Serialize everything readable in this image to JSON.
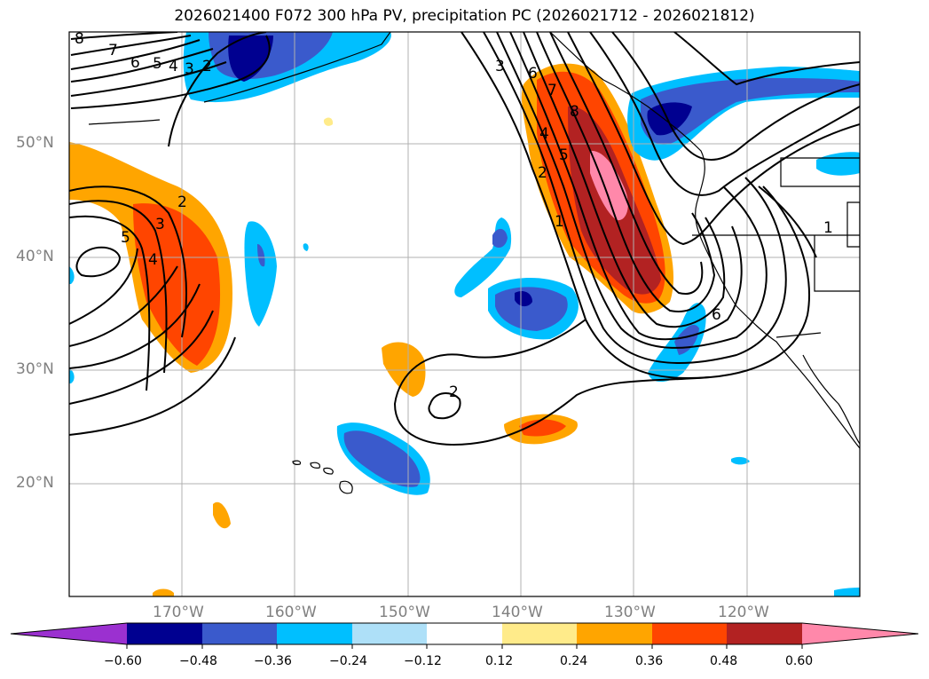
{
  "title": "2026021400 F072 300 hPa PV, precipitation PC (2026021712 - 2026021812)",
  "map": {
    "lon_range": [
      -180,
      -110
    ],
    "lat_range": [
      10,
      60
    ],
    "lat_labels": [
      "50°N",
      "40°N",
      "30°N",
      "20°N"
    ],
    "lon_labels": [
      "170°W",
      "160°W",
      "150°W",
      "140°W",
      "130°W",
      "120°W"
    ],
    "contour_labels": [
      "8",
      "7",
      "6",
      "5",
      "4",
      "3",
      "2",
      "2",
      "3",
      "4",
      "5",
      "3",
      "6",
      "7",
      "8",
      "4",
      "5",
      "2",
      "1",
      "2",
      "6",
      "1"
    ],
    "colors": {
      "land_outline": "#000000",
      "grid": "#b0b0b0",
      "contour": "#000000"
    }
  },
  "colorbar": {
    "ticks": [
      "−0.60",
      "−0.48",
      "−0.36",
      "−0.24",
      "−0.12",
      "0.12",
      "0.24",
      "0.36",
      "0.48",
      "0.60"
    ],
    "colors": [
      "#9b30d0",
      "#000090",
      "#3a5acc",
      "#00bfff",
      "#aee0f8",
      "#ffffff",
      "#ffeb8a",
      "#ffa500",
      "#ff4500",
      "#b22222",
      "#ff88aa"
    ]
  }
}
